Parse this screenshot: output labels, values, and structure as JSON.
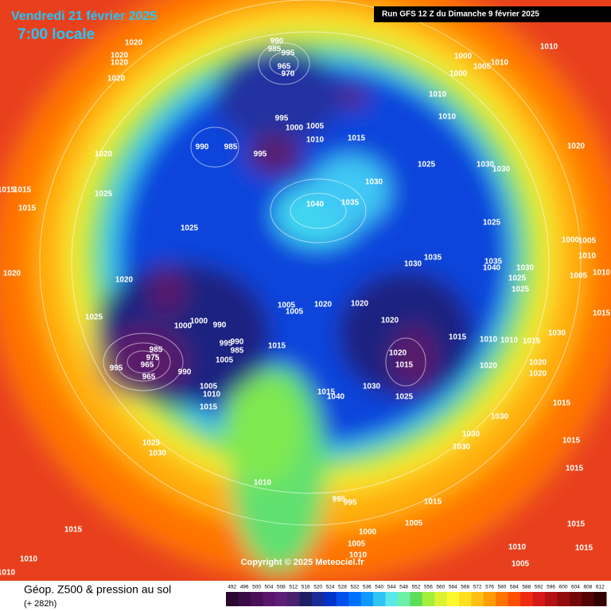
{
  "header": {
    "date": "Vendredi 21 février 2025",
    "time": "7:00 locale",
    "run": "Run GFS 12 Z du Dimanche 9 février 2025"
  },
  "footer": {
    "title": "Géop. Z500 & pression au sol",
    "lead": "(+ 282h)",
    "copyright": "Copyright © 2025 Meteociel.fr"
  },
  "legend": {
    "values": [
      492,
      496,
      500,
      504,
      508,
      512,
      516,
      520,
      524,
      528,
      532,
      536,
      540,
      544,
      548,
      552,
      556,
      560,
      564,
      568,
      572,
      576,
      580,
      584,
      588,
      592,
      596,
      600,
      604,
      608,
      612
    ],
    "colors": [
      "#2a0830",
      "#3a0c44",
      "#4a1058",
      "#5a166a",
      "#5e1e78",
      "#48206e",
      "#1e1e64",
      "#1a2a96",
      "#0034c8",
      "#0050ee",
      "#0070ff",
      "#1098ff",
      "#30c4f4",
      "#5ae8e8",
      "#6cf0a8",
      "#5ede58",
      "#a4ee3c",
      "#dcf232",
      "#fcf830",
      "#ffe020",
      "#ffc012",
      "#ff9c06",
      "#ff7400",
      "#ff4e00",
      "#f02c10",
      "#d41a18",
      "#b41212",
      "#940c0c",
      "#740808",
      "#540404",
      "#340000"
    ]
  },
  "map": {
    "pressure_labels": [
      "990",
      "985",
      "995",
      "965",
      "970",
      "1020",
      "1020",
      "1020",
      "1020",
      "1000",
      "1005",
      "1010",
      "1010",
      "1000",
      "1010",
      "1010",
      "995",
      "1000",
      "1005",
      "1010",
      "1015",
      "990",
      "985",
      "995",
      "1020",
      "1025",
      "1030",
      "1030",
      "1020",
      "1015",
      "1015",
      "1015",
      "1030",
      "1025",
      "1040",
      "1035",
      "1025",
      "1025",
      "1000",
      "1005",
      "1010",
      "1035",
      "1030",
      "1035",
      "1040",
      "1030",
      "1025",
      "1025",
      "1005",
      "1010",
      "1020",
      "1020",
      "1005",
      "1005",
      "1020",
      "1020",
      "1015",
      "1025",
      "1000",
      "1000",
      "990",
      "1020",
      "995",
      "990",
      "985",
      "985",
      "975",
      "965",
      "1015",
      "1030",
      "1015",
      "1010",
      "1010",
      "1015",
      "995",
      "965",
      "990",
      "1005",
      "1020",
      "1015",
      "1020",
      "1020",
      "1020",
      "1015",
      "1040",
      "1030",
      "1025",
      "1005",
      "1010",
      "1015",
      "1030",
      "1015",
      "1030",
      "1030",
      "1025",
      "1030",
      "1015",
      "1015",
      "1010",
      "995",
      "995",
      "1015",
      "1005",
      "1015",
      "1000",
      "1005",
      "1010",
      "1015",
      "1015",
      "1005",
      "1010",
      "1010",
      "1010"
    ]
  }
}
